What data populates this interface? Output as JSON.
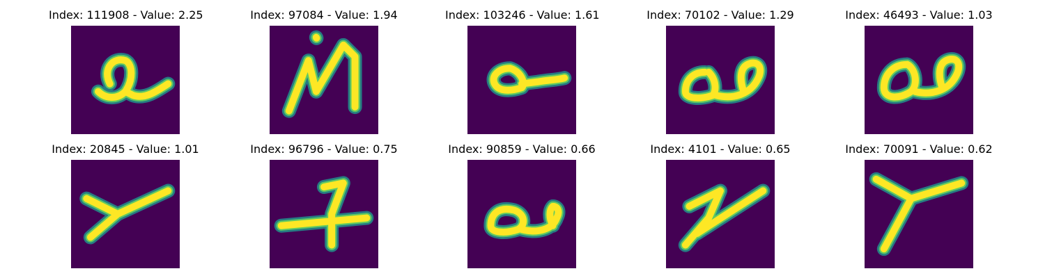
{
  "colors": {
    "background": "#440154",
    "stroke_outer": "#21918c",
    "stroke_mid": "#5ec962",
    "stroke_core": "#fde725"
  },
  "panels": [
    {
      "title": "Index: 111908 - Value: 2.25",
      "glyph": "a"
    },
    {
      "title": "Index: 97084 - Value: 1.94",
      "glyph": "M"
    },
    {
      "title": "Index: 103246 - Value: 1.61",
      "glyph": "a"
    },
    {
      "title": "Index: 70102 - Value: 1.29",
      "glyph": "a"
    },
    {
      "title": "Index: 46493 - Value: 1.03",
      "glyph": "a"
    },
    {
      "title": "Index: 20845 - Value: 1.01",
      "glyph": "Y"
    },
    {
      "title": "Index: 96796 - Value: 0.75",
      "glyph": "7"
    },
    {
      "title": "Index: 90859 - Value: 0.66",
      "glyph": "a"
    },
    {
      "title": "Index: 4101 - Value: 0.65",
      "glyph": "z"
    },
    {
      "title": "Index: 70091 - Value: 0.62",
      "glyph": "Y"
    }
  ]
}
